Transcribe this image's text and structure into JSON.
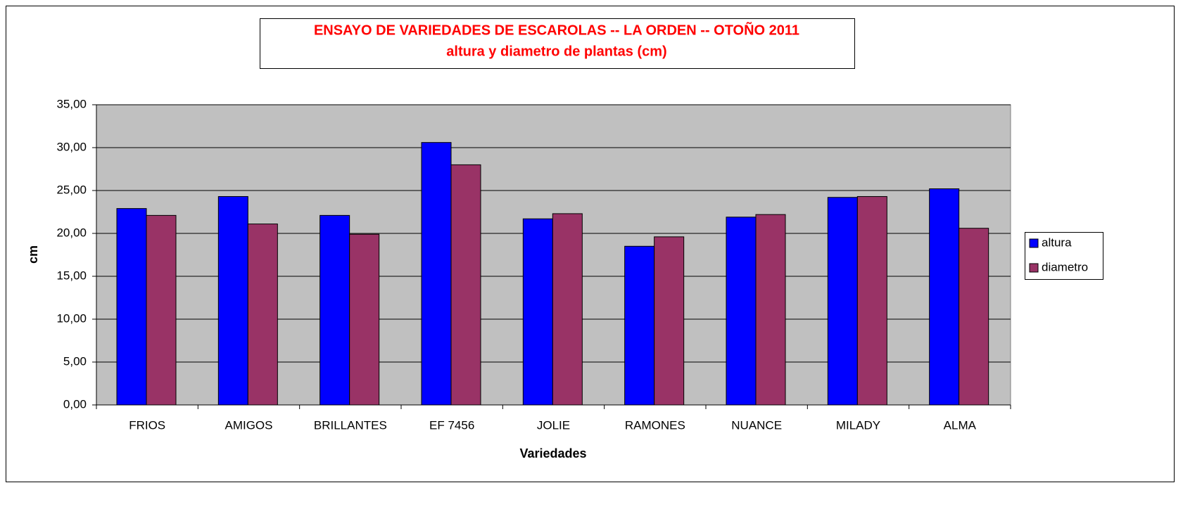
{
  "chart_data": {
    "type": "bar",
    "title": "ENSAYO DE VARIEDADES DE ESCAROLAS  -- LA ORDEN -- OTOÑO 2011",
    "subtitle": "altura y diametro de plantas (cm)",
    "x_label": "Variedades",
    "y_label": "cm",
    "categories": [
      "FRIOS",
      "AMIGOS",
      "BRILLANTES",
      "EF 7456",
      "JOLIE",
      "RAMONES",
      "NUANCE",
      "MILADY",
      "ALMA"
    ],
    "series": [
      {
        "name": "altura",
        "color": "#0000ff",
        "values": [
          22.9,
          24.3,
          22.1,
          30.6,
          21.7,
          18.5,
          21.9,
          24.2,
          25.2
        ]
      },
      {
        "name": "diametro",
        "color": "#993366",
        "values": [
          22.1,
          21.1,
          19.9,
          28.0,
          22.3,
          19.6,
          22.2,
          24.3,
          20.6
        ]
      }
    ],
    "ylim": [
      0,
      35
    ],
    "yticks": [
      {
        "value": 0,
        "label": "0,00"
      },
      {
        "value": 5,
        "label": "5,00"
      },
      {
        "value": 10,
        "label": "10,00"
      },
      {
        "value": 15,
        "label": "15,00"
      },
      {
        "value": 20,
        "label": "20,00"
      },
      {
        "value": 25,
        "label": "25,00"
      },
      {
        "value": 30,
        "label": "30,00"
      },
      {
        "value": 35,
        "label": "35,00"
      }
    ],
    "grid": true,
    "legend": "right",
    "background": "#c0c0c0"
  }
}
